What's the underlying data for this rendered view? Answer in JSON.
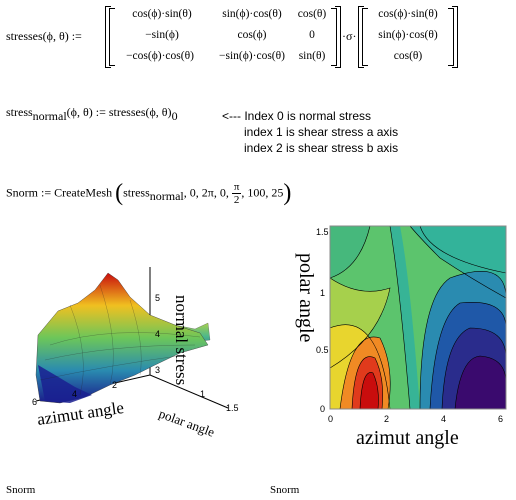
{
  "worksheet": {
    "line1": {
      "lhs": "stresses(ϕ, θ) :=",
      "matrix": [
        [
          "cos(ϕ)·sin(θ)",
          "sin(ϕ)·cos(θ)",
          "cos(θ)"
        ],
        [
          "−sin(ϕ)",
          "cos(ϕ)",
          "0"
        ],
        [
          "−cos(ϕ)·cos(θ)",
          "−sin(ϕ)·cos(θ)",
          "sin(θ)"
        ]
      ],
      "dot_sigma": "·σ·",
      "vector": [
        "cos(ϕ)·sin(θ)",
        "sin(ϕ)·cos(θ)",
        "cos(θ)"
      ]
    },
    "line2": {
      "lhs_main": "stress",
      "lhs_sub": "normal",
      "lhs_args": "(ϕ, θ) := stresses(ϕ, θ)",
      "rhs_sub": "0",
      "notes": [
        "<--- Index 0 is normal stress",
        "index 1 is shear stress a axis",
        "index 2 is shear stress b axis"
      ]
    },
    "line3": {
      "lhs": "Snorm := CreateMesh",
      "arg_main": "stress",
      "arg_sub": "normal",
      "args_a": ", 0, 2π, 0, ",
      "frac_num": "π",
      "frac_den": "2",
      "args_b": ", 100, 25"
    }
  },
  "surface_plot": {
    "zlabel": "normal stress",
    "xlabel": "azimut angle",
    "ylabel": "polar angle",
    "z_ticks": [
      "5",
      "4",
      "3"
    ],
    "x_ticks": [
      "6",
      "4",
      "2"
    ],
    "y_ticks": [
      "1",
      "1.5"
    ],
    "caption": "Snorm"
  },
  "contour_plot": {
    "xlabel": "azimut angle",
    "ylabel": "polar angle",
    "x_ticks": [
      "0",
      "2",
      "4",
      "6"
    ],
    "y_ticks": [
      "0",
      "0.5",
      "1",
      "1.5"
    ],
    "caption": "Snorm",
    "colors": [
      "#3a0a6e",
      "#2a2c8c",
      "#1f58a8",
      "#2a8bb0",
      "#33b39a",
      "#5cc46d",
      "#a6d04c",
      "#e8d52e",
      "#f08a24",
      "#e03a1c",
      "#c90d0d"
    ]
  }
}
